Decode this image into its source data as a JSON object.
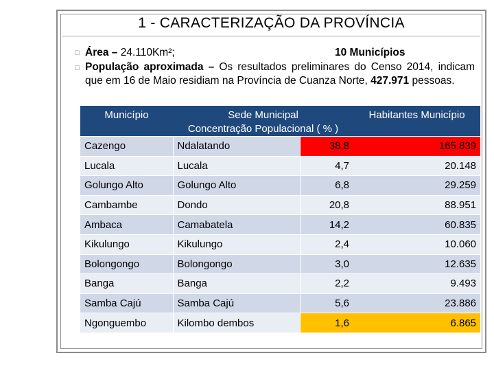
{
  "title": "1 - CARACTERIZAÇÃO DA PROVÍNCIA",
  "bullets": {
    "area_label": "Área –",
    "area_value": " 24.110Km²;",
    "municipios": "10 Municípios",
    "pop_label": "População aproximada –",
    "pop_text_1": " Os resultados preliminares do Censo 2014, indicam que em 16 de Maio residiam na Província de Cuanza Norte, ",
    "pop_value": "427.971",
    "pop_text_2": " pessoas."
  },
  "bullet_glyph": "□",
  "table": {
    "headers": {
      "municipio": "Município",
      "sede": "Sede Municipal",
      "concentracao": "Concentração Populacional ( % )",
      "habitantes": "Habitantes Município"
    },
    "rows": [
      {
        "municipio": "Cazengo",
        "sede": "Ndalatando",
        "pct": "38,8",
        "hab": "165.839"
      },
      {
        "municipio": "Lucala",
        "sede": "Lucala",
        "pct": "4,7",
        "hab": "20.148"
      },
      {
        "municipio": "Golungo Alto",
        "sede": "Golungo Alto",
        "pct": "6,8",
        "hab": "29.259"
      },
      {
        "municipio": "Cambambe",
        "sede": "Dondo",
        "pct": "20,8",
        "hab": "88.951"
      },
      {
        "municipio": "Ambaca",
        "sede": "Camabatela",
        "pct": "14,2",
        "hab": "60.835"
      },
      {
        "municipio": "Kikulungo",
        "sede": "Kikulungo",
        "pct": "2,4",
        "hab": "10.060"
      },
      {
        "municipio": "Bolongongo",
        "sede": "Bolongongo",
        "pct": "3,0",
        "hab": "12.635"
      },
      {
        "municipio": "Banga",
        "sede": "Banga",
        "pct": "2,2",
        "hab": "9.493"
      },
      {
        "municipio": "Samba Cajú",
        "sede": "Samba Cajú",
        "pct": "5,6",
        "hab": "23.886"
      },
      {
        "municipio": "Ngonguembo",
        "sede": "Kilombo dembos",
        "pct": "1,6",
        "hab": "6.865"
      }
    ]
  },
  "colors": {
    "header": "#1f497d",
    "row_odd": "#d0d8e8",
    "row_even": "#e9edf4",
    "highlight_max": "#ff0000",
    "highlight_min": "#ffc000"
  }
}
